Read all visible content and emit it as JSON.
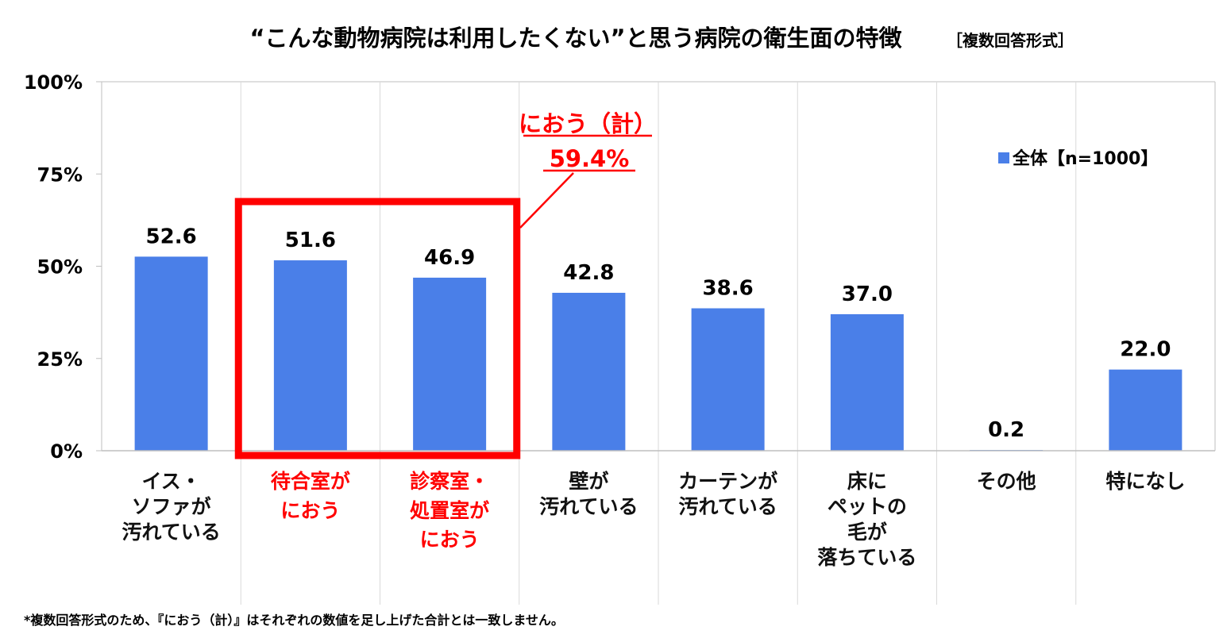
{
  "title": "“こんな動物病院は利用したくない”と思う病院の衛生面の特徴",
  "subtitle": "［複数回答形式］",
  "footnote": "*複数回答形式のため、『におう（計）』はそれぞれの数値を足し上げた合計とは一致しません。",
  "legend": {
    "label": "全体【n=1000】",
    "placement": "top-right"
  },
  "callout": {
    "line1": "におう（計）",
    "line2": "59.4%",
    "highlighted_categories": [
      1,
      2
    ]
  },
  "colors": {
    "bar": "#4a7fe8",
    "highlight": "#ff0000",
    "grid": "#d9d9d9",
    "axis": "#bfbfbf"
  },
  "chart_data": {
    "type": "bar",
    "title": "“こんな動物病院は利用したくない”と思う病院の衛生面の特徴",
    "ylim": [
      0,
      100
    ],
    "yticks": [
      "0%",
      "25%",
      "50%",
      "75%",
      "100%"
    ],
    "grid": false,
    "categories": [
      [
        "イス・",
        "ソファが",
        "汚れている"
      ],
      [
        "待合室が",
        "におう"
      ],
      [
        "診察室・",
        "処置室が",
        "におう"
      ],
      [
        "壁が",
        "汚れている"
      ],
      [
        "カーテンが",
        "汚れている"
      ],
      [
        "床に",
        "ペットの",
        "毛が",
        "落ちている"
      ],
      [
        "その他"
      ],
      [
        "特になし"
      ]
    ],
    "highlight": [
      false,
      true,
      true,
      false,
      false,
      false,
      false,
      false
    ],
    "series": [
      {
        "name": "全体【n=1000】",
        "values": [
          52.6,
          51.6,
          46.9,
          42.8,
          38.6,
          37.0,
          0.2,
          22.0
        ],
        "labels": [
          "52.6",
          "51.6",
          "46.9",
          "42.8",
          "38.6",
          "37.0",
          "0.2",
          "22.0"
        ]
      }
    ]
  }
}
